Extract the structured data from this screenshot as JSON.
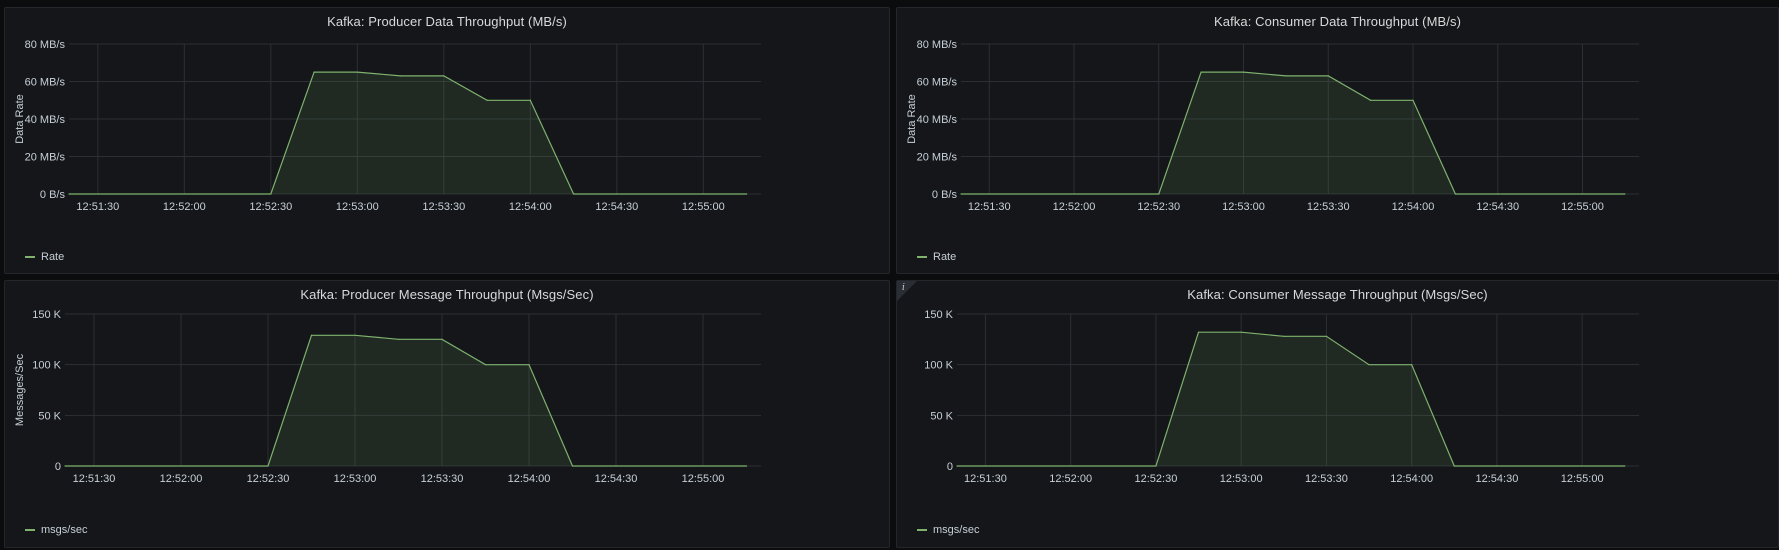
{
  "panels": [
    {
      "title": "Kafka: Producer Data Throughput (MB/s)",
      "legend": "Rate",
      "chart_data": {
        "type": "area",
        "title": "Kafka: Producer Data Throughput (MB/s)",
        "ylabel": "Data Rate",
        "x_ticks": [
          "12:51:30",
          "12:52:00",
          "12:52:30",
          "12:53:00",
          "12:53:30",
          "12:54:00",
          "12:54:30",
          "12:55:00"
        ],
        "y_ticks": [
          "0 B/s",
          "20 MB/s",
          "40 MB/s",
          "60 MB/s",
          "80 MB/s"
        ],
        "ylim": [
          0,
          80
        ],
        "xlim": [
          "12:51:20",
          "12:55:20"
        ],
        "series": [
          {
            "name": "Rate",
            "x": [
              "12:51:20",
              "12:52:30",
              "12:52:45",
              "12:53:00",
              "12:53:15",
              "12:53:30",
              "12:53:45",
              "12:54:00",
              "12:54:15",
              "12:54:30",
              "12:55:15"
            ],
            "values": [
              0,
              0,
              65,
              65,
              63,
              63,
              50,
              50,
              0,
              0,
              0
            ]
          }
        ]
      }
    },
    {
      "title": "Kafka: Consumer Data Throughput (MB/s)",
      "legend": "Rate",
      "chart_data": {
        "type": "area",
        "title": "Kafka: Consumer Data Throughput (MB/s)",
        "ylabel": "Data Rate",
        "x_ticks": [
          "12:51:30",
          "12:52:00",
          "12:52:30",
          "12:53:00",
          "12:53:30",
          "12:54:00",
          "12:54:30",
          "12:55:00"
        ],
        "y_ticks": [
          "0 B/s",
          "20 MB/s",
          "40 MB/s",
          "60 MB/s",
          "80 MB/s"
        ],
        "ylim": [
          0,
          80
        ],
        "xlim": [
          "12:51:20",
          "12:55:20"
        ],
        "series": [
          {
            "name": "Rate",
            "x": [
              "12:51:20",
              "12:52:30",
              "12:52:45",
              "12:53:00",
              "12:53:15",
              "12:53:30",
              "12:53:45",
              "12:54:00",
              "12:54:15",
              "12:54:30",
              "12:55:15"
            ],
            "values": [
              0,
              0,
              65,
              65,
              63,
              63,
              50,
              50,
              0,
              0,
              0
            ]
          }
        ]
      }
    },
    {
      "title": "Kafka: Producer Message Throughput (Msgs/Sec)",
      "legend": "msgs/sec",
      "chart_data": {
        "type": "area",
        "title": "Kafka: Producer Message Throughput (Msgs/Sec)",
        "ylabel": "Messages/Sec",
        "x_ticks": [
          "12:51:30",
          "12:52:00",
          "12:52:30",
          "12:53:00",
          "12:53:30",
          "12:54:00",
          "12:54:30",
          "12:55:00"
        ],
        "y_ticks": [
          "0",
          "50 K",
          "100 K",
          "150 K"
        ],
        "ylim": [
          0,
          150000
        ],
        "xlim": [
          "12:51:20",
          "12:55:20"
        ],
        "series": [
          {
            "name": "msgs/sec",
            "x": [
              "12:51:20",
              "12:52:30",
              "12:52:45",
              "12:53:00",
              "12:53:15",
              "12:53:30",
              "12:53:45",
              "12:54:00",
              "12:54:15",
              "12:54:30",
              "12:55:15"
            ],
            "values": [
              0,
              0,
              129000,
              129000,
              125000,
              125000,
              100000,
              100000,
              0,
              0,
              0
            ]
          }
        ]
      }
    },
    {
      "title": "Kafka: Consumer Message Throughput (Msgs/Sec)",
      "legend": "msgs/sec",
      "info_icon": "info-icon",
      "chart_data": {
        "type": "area",
        "title": "Kafka: Consumer Message Throughput (Msgs/Sec)",
        "ylabel": "",
        "x_ticks": [
          "12:51:30",
          "12:52:00",
          "12:52:30",
          "12:53:00",
          "12:53:30",
          "12:54:00",
          "12:54:30",
          "12:55:00"
        ],
        "y_ticks": [
          "0",
          "50 K",
          "100 K",
          "150 K"
        ],
        "ylim": [
          0,
          150000
        ],
        "xlim": [
          "12:51:20",
          "12:55:20"
        ],
        "series": [
          {
            "name": "msgs/sec",
            "x": [
              "12:51:20",
              "12:52:30",
              "12:52:45",
              "12:53:00",
              "12:53:15",
              "12:53:30",
              "12:53:45",
              "12:54:00",
              "12:54:15",
              "12:54:30",
              "12:55:15"
            ],
            "values": [
              0,
              0,
              132000,
              132000,
              128000,
              128000,
              100000,
              100000,
              0,
              0,
              0
            ]
          }
        ]
      }
    }
  ],
  "colors": {
    "series": "#7eb26d",
    "fill": "#7eb26d",
    "grid": "#2c2f34",
    "axis_text": "#c7d0d9",
    "panel_bg": "#141619"
  }
}
